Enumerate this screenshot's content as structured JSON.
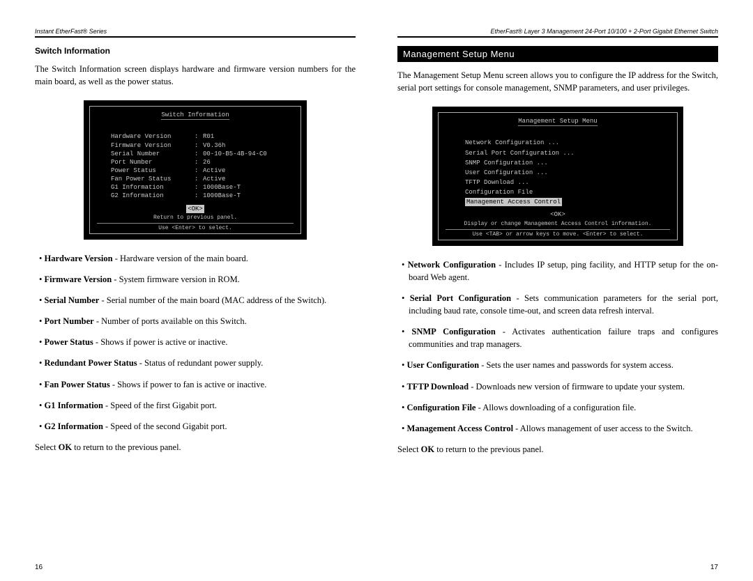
{
  "left": {
    "header": "Instant EtherFast® Series",
    "subhead": "Switch Information",
    "intro": "The Switch Information screen displays hardware and firmware version numbers for the main board, as well as the power status.",
    "term": {
      "title": "Switch Information",
      "rows": [
        {
          "k": "Hardware Version",
          "v": "R01"
        },
        {
          "k": "Firmware Version",
          "v": "V0.36h"
        },
        {
          "k": "Serial Number",
          "v": "00-10-B5-4B-94-C0"
        },
        {
          "k": "Port Number",
          "v": "26"
        },
        {
          "k": "Power Status",
          "v": "Active"
        },
        {
          "k": "Fan Power Status",
          "v": "Active"
        },
        {
          "k": "G1 Information",
          "v": "1000Base-T"
        },
        {
          "k": "G2 Information",
          "v": "1000Base-T"
        }
      ],
      "ok": "<OK>",
      "help1": "Return to previous panel.",
      "help2": "Use <Enter> to select."
    },
    "bullets": [
      {
        "b": "Hardware Version",
        "t": " - Hardware version of the main board."
      },
      {
        "b": "Firmware Version",
        "t": " - System firmware version in ROM."
      },
      {
        "b": "Serial Number",
        "t": " - Serial number of the main board (MAC address of the Switch)."
      },
      {
        "b": "Port Number",
        "t": " - Number of ports available on this Switch."
      },
      {
        "b": "Power Status",
        "t": " - Shows if power is active or inactive."
      },
      {
        "b": "Redundant Power Status",
        "t": " - Status of redundant power supply."
      },
      {
        "b": "Fan Power Status",
        "t": " - Shows if power to fan is active or inactive."
      },
      {
        "b": "G1 Information",
        "t": " - Speed of the first Gigabit port."
      },
      {
        "b": "G2 Information",
        "t": " - Speed of the second Gigabit port."
      }
    ],
    "outro_pre": "Select ",
    "outro_b": "OK",
    "outro_post": " to return to the previous panel.",
    "pagenum": "16"
  },
  "right": {
    "header": "EtherFast® Layer 3 Management 24-Port 10/100 + 2-Port Gigabit Ethernet Switch",
    "bar": "Management Setup Menu",
    "intro": "The Management Setup Menu screen allows you to configure the IP address for the Switch, serial port settings for console management, SNMP parameters, and user privileges.",
    "term": {
      "title": "Management Setup Menu",
      "items": [
        "Network Configuration ...",
        "Serial Port Configuration ...",
        "SNMP Configuration ...",
        "User Configuration ...",
        "TFTP Download ...",
        "Configuration File"
      ],
      "selected": "Management Access Control",
      "ok": "<OK>",
      "help1": "Display or change Management Access Control information.",
      "help2": "Use <TAB> or arrow keys to move. <Enter> to select."
    },
    "bullets": [
      {
        "b": "Network Configuration",
        "t": " - Includes IP setup, ping facility, and HTTP setup for the on-board Web agent."
      },
      {
        "b": "Serial Port Configuration",
        "t": " - Sets communication parameters for the serial port, including baud rate, console time-out, and screen data refresh interval."
      },
      {
        "b": "SNMP Configuration",
        "t": " - Activates authentication failure traps and configures communities and trap managers."
      },
      {
        "b": "User Configuration",
        "t": " - Sets the user names and passwords for system access."
      },
      {
        "b": "TFTP Download",
        "t": " - Downloads new version of firmware to update your system."
      },
      {
        "b": "Configuration File",
        "t": " - Allows downloading of a configuration file."
      },
      {
        "b": "Management Access Control",
        "t": " - Allows management of user access to the Switch."
      }
    ],
    "outro_pre": "Select ",
    "outro_b": "OK",
    "outro_post": " to return to the previous panel.",
    "pagenum": "17"
  }
}
